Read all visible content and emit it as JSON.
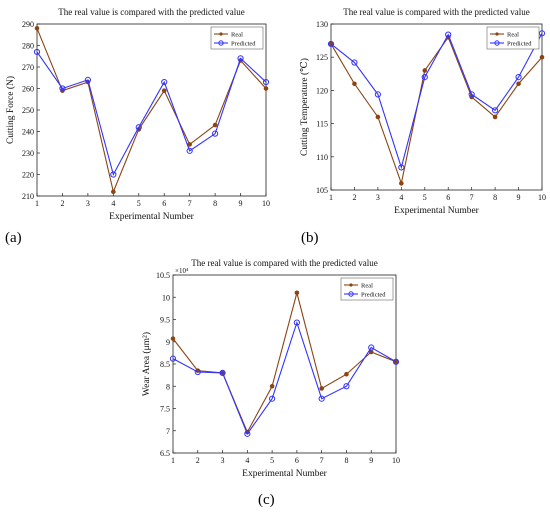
{
  "figure": {
    "panels": [
      {
        "letter": "(a)"
      },
      {
        "letter": "(b)"
      },
      {
        "letter": "(c)"
      }
    ]
  },
  "chart_data": [
    {
      "type": "line",
      "title": "The real value is compared with the predicted value",
      "xlabel": "Experimental Number",
      "ylabel": "Cutting Force (N)",
      "x": [
        1,
        2,
        3,
        4,
        5,
        6,
        7,
        8,
        9,
        10
      ],
      "xlim": [
        1,
        10
      ],
      "ylim": [
        210,
        290
      ],
      "yticks": [
        210,
        220,
        230,
        240,
        250,
        260,
        270,
        280,
        290
      ],
      "grid": false,
      "legend_position": "top-right",
      "series": [
        {
          "name": "Real",
          "color": "#8b4513",
          "marker": "dot",
          "values": [
            288,
            259,
            263,
            212,
            241,
            259,
            234,
            243,
            273,
            260
          ]
        },
        {
          "name": "Predicted",
          "color": "#3333ff",
          "marker": "circle",
          "values": [
            277,
            260,
            264,
            220,
            242,
            263,
            231,
            239,
            274,
            263
          ]
        }
      ]
    },
    {
      "type": "line",
      "title": "The real value is compared with the predicted value",
      "xlabel": "Experimental Number",
      "ylabel": "Cutting Temperature (℃)",
      "x": [
        1,
        2,
        3,
        4,
        5,
        6,
        7,
        8,
        9,
        10
      ],
      "xlim": [
        1,
        10
      ],
      "ylim": [
        105,
        130
      ],
      "yticks": [
        105,
        110,
        115,
        120,
        125,
        130
      ],
      "grid": false,
      "legend_position": "top-right",
      "series": [
        {
          "name": "Real",
          "color": "#8b4513",
          "marker": "dot",
          "values": [
            127,
            121,
            116,
            106,
            123,
            128,
            119,
            116,
            121,
            125
          ]
        },
        {
          "name": "Predicted",
          "color": "#3333ff",
          "marker": "circle",
          "values": [
            127,
            124.2,
            119.4,
            108.4,
            122,
            128.4,
            119.4,
            117,
            122,
            128.6
          ]
        }
      ]
    },
    {
      "type": "line",
      "title": "The real value is compared with the predicted value",
      "xlabel": "Experimental Number",
      "ylabel": "Wear Area (μm²)",
      "y_multiplier": "×10⁴",
      "x": [
        1,
        2,
        3,
        4,
        5,
        6,
        7,
        8,
        9,
        10
      ],
      "xlim": [
        1,
        10
      ],
      "ylim": [
        6.5,
        10.5
      ],
      "yticks": [
        6.5,
        7,
        7.5,
        8,
        8.5,
        9,
        9.5,
        10,
        10.5
      ],
      "grid": false,
      "legend_position": "top-right",
      "series": [
        {
          "name": "Real",
          "color": "#8b4513",
          "marker": "dot",
          "values": [
            9.07,
            8.35,
            8.3,
            6.97,
            8.0,
            10.1,
            7.95,
            8.27,
            8.77,
            8.55
          ]
        },
        {
          "name": "Predicted",
          "color": "#3333ff",
          "marker": "circle",
          "values": [
            8.62,
            8.32,
            8.3,
            6.93,
            7.72,
            9.43,
            7.72,
            8.0,
            8.87,
            8.55
          ]
        }
      ]
    }
  ]
}
